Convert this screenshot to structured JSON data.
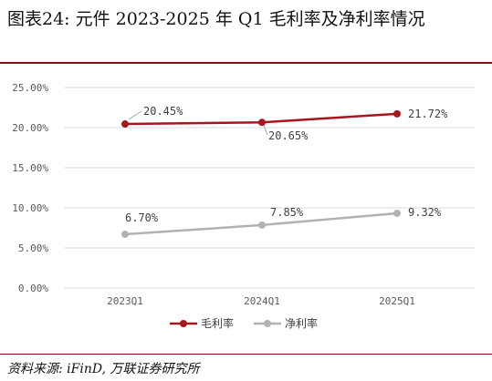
{
  "header": {
    "title": "图表24:  元件 2023-2025 年 Q1 毛利率及净利率情况"
  },
  "footer": {
    "source": "资料来源: iFinD, 万联证券研究所"
  },
  "chart_data": {
    "type": "line",
    "categories": [
      "2023Q1",
      "2024Q1",
      "2025Q1"
    ],
    "series": [
      {
        "name": "毛利率",
        "values": [
          20.45,
          20.65,
          21.72
        ],
        "labels": [
          "20.45%",
          "20.65%",
          "21.72%"
        ],
        "color": "#a5161f"
      },
      {
        "name": "净利率",
        "values": [
          6.7,
          7.85,
          9.32
        ],
        "labels": [
          "6.70%",
          "7.85%",
          "9.32%"
        ],
        "color": "#b2b2b2"
      }
    ],
    "yticks": [
      "0.00%",
      "5.00%",
      "10.00%",
      "15.00%",
      "20.00%",
      "25.00%"
    ],
    "ylim": [
      0,
      25
    ],
    "grid": true,
    "legend_position": "bottom"
  }
}
